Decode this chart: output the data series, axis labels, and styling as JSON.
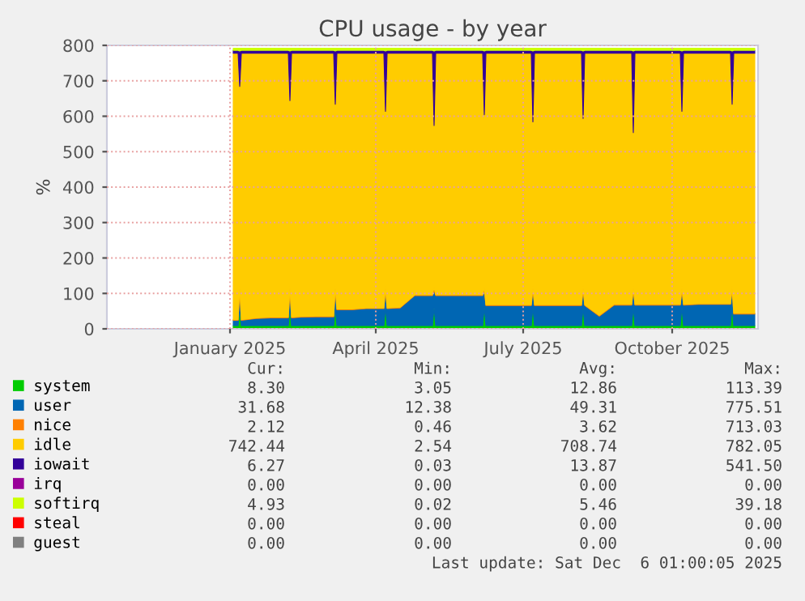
{
  "chart_data": {
    "type": "area",
    "stacked": true,
    "title": "CPU usage - by year",
    "ylabel": "%",
    "x": [
      "2025-01-18",
      "2025-01-21",
      "2025-01-22",
      "2025-01-23",
      "2025-02-01",
      "2025-02-10",
      "2025-02-21",
      "2025-02-22",
      "2025-02-23",
      "2025-03-01",
      "2025-03-10",
      "2025-03-21",
      "2025-03-22",
      "2025-03-23",
      "2025-04-01",
      "2025-04-10",
      "2025-04-21",
      "2025-04-22",
      "2025-04-23",
      "2025-05-01",
      "2025-05-10",
      "2025-05-21",
      "2025-05-22",
      "2025-05-23",
      "2025-06-01",
      "2025-06-10",
      "2025-06-21",
      "2025-06-22",
      "2025-06-23",
      "2025-07-01",
      "2025-07-10",
      "2025-07-21",
      "2025-07-22",
      "2025-07-23",
      "2025-08-01",
      "2025-08-10",
      "2025-08-21",
      "2025-08-22",
      "2025-08-23",
      "2025-09-01",
      "2025-09-10",
      "2025-09-21",
      "2025-09-22",
      "2025-09-23",
      "2025-10-01",
      "2025-10-10",
      "2025-10-21",
      "2025-10-22",
      "2025-10-23",
      "2025-11-01",
      "2025-11-10",
      "2025-11-21",
      "2025-11-22",
      "2025-11-23",
      "2025-12-01",
      "2025-12-06"
    ],
    "series": [
      {
        "name": "system",
        "color": "#00cc00",
        "values": [
          9,
          9,
          60,
          9,
          9,
          9,
          9,
          60,
          9,
          9,
          9,
          9,
          60,
          9,
          9,
          9,
          9,
          60,
          9,
          9,
          9,
          9,
          60,
          9,
          9,
          9,
          9,
          60,
          9,
          9,
          9,
          9,
          60,
          9,
          9,
          9,
          9,
          60,
          9,
          9,
          9,
          9,
          60,
          9,
          9,
          9,
          9,
          60,
          9,
          9,
          9,
          9,
          60,
          9,
          9,
          9
        ]
      },
      {
        "name": "user",
        "color": "#0066b3",
        "values": [
          15,
          15,
          50,
          15,
          20,
          22,
          22,
          50,
          22,
          24,
          25,
          25,
          50,
          45,
          45,
          48,
          48,
          50,
          48,
          50,
          85,
          85,
          50,
          85,
          85,
          85,
          85,
          50,
          57,
          57,
          57,
          57,
          50,
          57,
          57,
          57,
          57,
          50,
          57,
          27,
          58,
          58,
          50,
          58,
          58,
          58,
          58,
          50,
          58,
          60,
          60,
          60,
          50,
          33,
          33,
          33
        ]
      },
      {
        "name": "nice",
        "color": "#ff8000",
        "values": [
          2,
          2,
          8,
          2,
          2,
          2,
          2,
          8,
          2,
          2,
          2,
          2,
          8,
          2,
          2,
          2,
          2,
          8,
          2,
          2,
          2,
          2,
          8,
          2,
          2,
          2,
          2,
          8,
          2,
          2,
          2,
          2,
          8,
          2,
          2,
          2,
          2,
          8,
          2,
          2,
          2,
          2,
          8,
          2,
          2,
          2,
          2,
          8,
          2,
          2,
          2,
          2,
          8,
          2,
          2,
          2
        ]
      },
      {
        "name": "idle",
        "color": "#ffcc00",
        "values": [
          752,
          752,
          566,
          752,
          747,
          745,
          745,
          526,
          745,
          743,
          742,
          742,
          516,
          722,
          722,
          719,
          719,
          496,
          719,
          717,
          682,
          682,
          456,
          682,
          682,
          682,
          682,
          486,
          710,
          710,
          710,
          710,
          466,
          710,
          710,
          710,
          710,
          476,
          710,
          740,
          709,
          709,
          436,
          709,
          709,
          709,
          709,
          496,
          709,
          707,
          707,
          707,
          516,
          734,
          734,
          734
        ]
      },
      {
        "name": "iowait",
        "color": "#330099",
        "values": [
          8,
          8,
          100,
          8,
          8,
          8,
          8,
          140,
          8,
          8,
          8,
          8,
          150,
          8,
          8,
          8,
          8,
          170,
          8,
          8,
          8,
          8,
          210,
          8,
          8,
          8,
          8,
          180,
          8,
          8,
          8,
          8,
          200,
          8,
          8,
          8,
          8,
          190,
          8,
          8,
          8,
          8,
          230,
          8,
          8,
          8,
          8,
          170,
          8,
          8,
          8,
          8,
          150,
          8,
          8,
          8
        ]
      },
      {
        "name": "irq",
        "color": "#990099",
        "values": [
          null,
          null,
          null,
          null,
          null,
          null,
          null,
          null,
          null,
          null,
          null,
          null,
          null,
          null,
          null,
          null,
          null,
          null,
          null,
          null,
          null,
          null,
          null,
          null,
          null,
          null,
          null,
          null,
          null,
          null,
          null,
          null,
          null,
          null,
          null,
          null,
          null,
          null,
          null,
          null,
          null,
          null,
          null,
          null,
          null,
          null,
          null,
          null,
          null,
          null,
          null,
          null,
          null,
          null,
          null,
          null
        ]
      },
      {
        "name": "softirq",
        "color": "#ccff00",
        "values": [
          6,
          6,
          8,
          6,
          6,
          6,
          6,
          8,
          6,
          6,
          6,
          6,
          8,
          6,
          6,
          6,
          6,
          8,
          6,
          6,
          6,
          6,
          8,
          6,
          6,
          6,
          6,
          8,
          6,
          6,
          6,
          6,
          8,
          6,
          6,
          6,
          6,
          8,
          6,
          6,
          6,
          6,
          8,
          6,
          6,
          6,
          6,
          8,
          6,
          6,
          6,
          6,
          8,
          6,
          6,
          6
        ]
      },
      {
        "name": "steal",
        "color": "#ff0000",
        "values": [
          null,
          null,
          null,
          null,
          null,
          null,
          null,
          null,
          null,
          null,
          null,
          null,
          null,
          null,
          null,
          null,
          null,
          null,
          null,
          null,
          null,
          null,
          null,
          null,
          null,
          null,
          null,
          null,
          null,
          null,
          null,
          null,
          null,
          null,
          null,
          null,
          null,
          null,
          null,
          null,
          null,
          null,
          null,
          null,
          null,
          null,
          null,
          null,
          null,
          null,
          null,
          null,
          null,
          null,
          null,
          null
        ]
      },
      {
        "name": "guest",
        "color": "#808080",
        "values": [
          null,
          null,
          null,
          null,
          null,
          null,
          null,
          null,
          null,
          null,
          null,
          null,
          null,
          null,
          null,
          null,
          null,
          null,
          null,
          null,
          null,
          null,
          null,
          null,
          null,
          null,
          null,
          null,
          null,
          null,
          null,
          null,
          null,
          null,
          null,
          null,
          null,
          null,
          null,
          null,
          null,
          null,
          null,
          null,
          null,
          null,
          null,
          null,
          null,
          null,
          null,
          null,
          null,
          null,
          null,
          null
        ]
      }
    ],
    "xlim": [
      "2024-11-01",
      "2025-12-08"
    ],
    "xticks": [
      {
        "value": "2025-01-16",
        "label": "January 2025"
      },
      {
        "value": "2025-04-16",
        "label": "April 2025"
      },
      {
        "value": "2025-07-16",
        "label": "July 2025"
      },
      {
        "value": "2025-10-16",
        "label": "October 2025"
      }
    ],
    "ylim": [
      0,
      800
    ],
    "yticks": [
      0,
      100,
      200,
      300,
      400,
      500,
      600,
      700,
      800
    ],
    "grid": true,
    "legend": "bottom",
    "annotations": [
      "Cur:",
      "Min:",
      "Avg:",
      "Max:",
      "8.30",
      "3.05",
      "12.86",
      "113.39",
      "31.68",
      "12.38",
      "49.31",
      "775.51",
      "2.12",
      "0.46",
      "3.62",
      "713.03",
      "742.44",
      "2.54",
      "708.74",
      "782.05",
      "6.27",
      "0.03",
      "13.87",
      "541.50",
      "0.00",
      "0.00",
      "0.00",
      "0.00",
      "4.93",
      "0.02",
      "5.46",
      "39.18",
      "0.00",
      "0.00",
      "0.00",
      "0.00",
      "0.00",
      "0.00",
      "0.00",
      "0.00",
      "Last update: Sat Dec  6 01:00:05 2025"
    ]
  }
}
